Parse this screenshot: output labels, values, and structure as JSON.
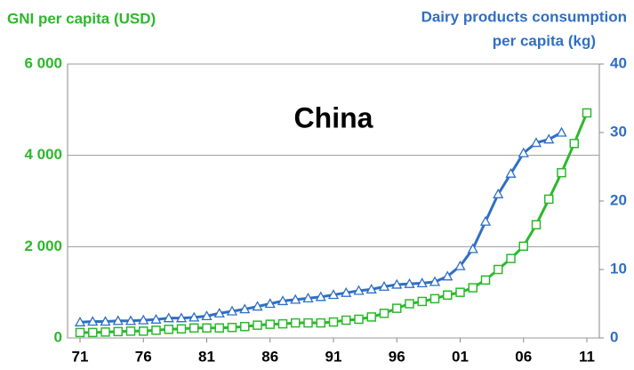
{
  "chart_data": {
    "type": "line",
    "title": "China",
    "ylabel": "GNI per capita (USD)",
    "y2label": [
      "Dairy products consumption",
      "per capita (kg)"
    ],
    "categories": [
      "71",
      null,
      null,
      null,
      null,
      "76",
      null,
      null,
      null,
      null,
      "81",
      null,
      null,
      null,
      null,
      "86",
      null,
      null,
      null,
      null,
      "91",
      null,
      null,
      null,
      null,
      "96",
      null,
      null,
      null,
      null,
      "01",
      null,
      null,
      null,
      null,
      "06",
      null,
      null,
      null,
      null,
      "11"
    ],
    "ylim": [
      0,
      6000
    ],
    "yticks": [
      0,
      {
        "value": 2000,
        "label": "2 000"
      },
      {
        "value": 4000,
        "label": "4 000"
      },
      {
        "value": 6000,
        "label": "6 000"
      }
    ],
    "y2lim": [
      0,
      40
    ],
    "y2ticks": [
      0,
      10,
      20,
      30,
      40
    ],
    "grid": true,
    "series": [
      {
        "name": "GNI per capita (USD)",
        "color": "#2db82d",
        "marker": "square",
        "values": [
          120,
          120,
          130,
          140,
          150,
          150,
          170,
          190,
          200,
          220,
          220,
          220,
          230,
          250,
          280,
          300,
          310,
          330,
          330,
          330,
          350,
          390,
          410,
          460,
          540,
          650,
          750,
          800,
          860,
          940,
          1000,
          1100,
          1270,
          1500,
          1740,
          2010,
          2480,
          3040,
          3620,
          4260,
          4930
        ]
      },
      {
        "name": "Dairy products consumption per capita (kg)",
        "color": "#2f6fc4",
        "marker": "triangle",
        "axis": "y2",
        "values": [
          2.3,
          2.4,
          2.4,
          2.5,
          2.5,
          2.6,
          2.7,
          2.9,
          2.9,
          3.0,
          3.2,
          3.6,
          3.9,
          4.2,
          4.6,
          5.0,
          5.4,
          5.6,
          5.8,
          6.0,
          6.3,
          6.6,
          6.9,
          7.1,
          7.5,
          7.8,
          7.9,
          8.0,
          8.2,
          9.0,
          10.5,
          13,
          17,
          21,
          24,
          27,
          28.5,
          29,
          30,
          null,
          null
        ]
      }
    ]
  }
}
